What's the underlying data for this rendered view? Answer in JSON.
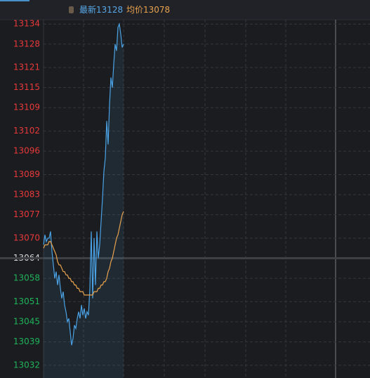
{
  "chart_data": {
    "type": "line",
    "header": [
      {
        "label": "最新",
        "value": 13128,
        "color": "#58a8e8"
      },
      {
        "label": "均价",
        "value": 13078,
        "color": "#e8a24e"
      }
    ],
    "series": [
      {
        "name": "price",
        "color": "#4aa3e6",
        "values": [
          13068,
          13071,
          13069,
          13070,
          13070,
          13072,
          13066,
          13062,
          13058,
          13060,
          13056,
          13059,
          13055,
          13052,
          13054,
          13050,
          13048,
          13045,
          13046,
          13042,
          13038,
          13040,
          13044,
          13043,
          13046,
          13048,
          13046,
          13050,
          13047,
          13049,
          13046,
          13048,
          13047,
          13055,
          13072,
          13052,
          13070,
          13056,
          13072,
          13064,
          13068,
          13075,
          13082,
          13090,
          13094,
          13105,
          13098,
          13110,
          13118,
          13115,
          13122,
          13128,
          13126,
          13133,
          13134,
          13131,
          13127,
          13128
        ]
      },
      {
        "name": "average",
        "color": "#e8a24e",
        "values": [
          13067,
          13068,
          13068,
          13068,
          13069,
          13069,
          13068,
          13067,
          13066,
          13065,
          13063,
          13062,
          13062,
          13061,
          13060,
          13060,
          13059,
          13059,
          13058,
          13058,
          13057,
          13057,
          13056,
          13056,
          13055,
          13055,
          13054,
          13054,
          13054,
          13053,
          13053,
          13053,
          13053,
          13053,
          13053,
          13053,
          13054,
          13054,
          13054,
          13055,
          13055,
          13056,
          13056,
          13057,
          13057,
          13058,
          13060,
          13061,
          13063,
          13064,
          13066,
          13068,
          13070,
          13071,
          13073,
          13075,
          13077,
          13078
        ]
      }
    ],
    "ylim": [
      13028.2,
      13135.3
    ],
    "yticks": [
      13134,
      13128,
      13121,
      13115,
      13109,
      13102,
      13096,
      13089,
      13083,
      13077,
      13070,
      13064,
      13058,
      13051,
      13045,
      13039,
      13032
    ],
    "reference_line": 13064,
    "up_color": "#e8393a",
    "down_color": "#1fb35a",
    "flat_color": "#d8d8d8",
    "grid": true
  }
}
